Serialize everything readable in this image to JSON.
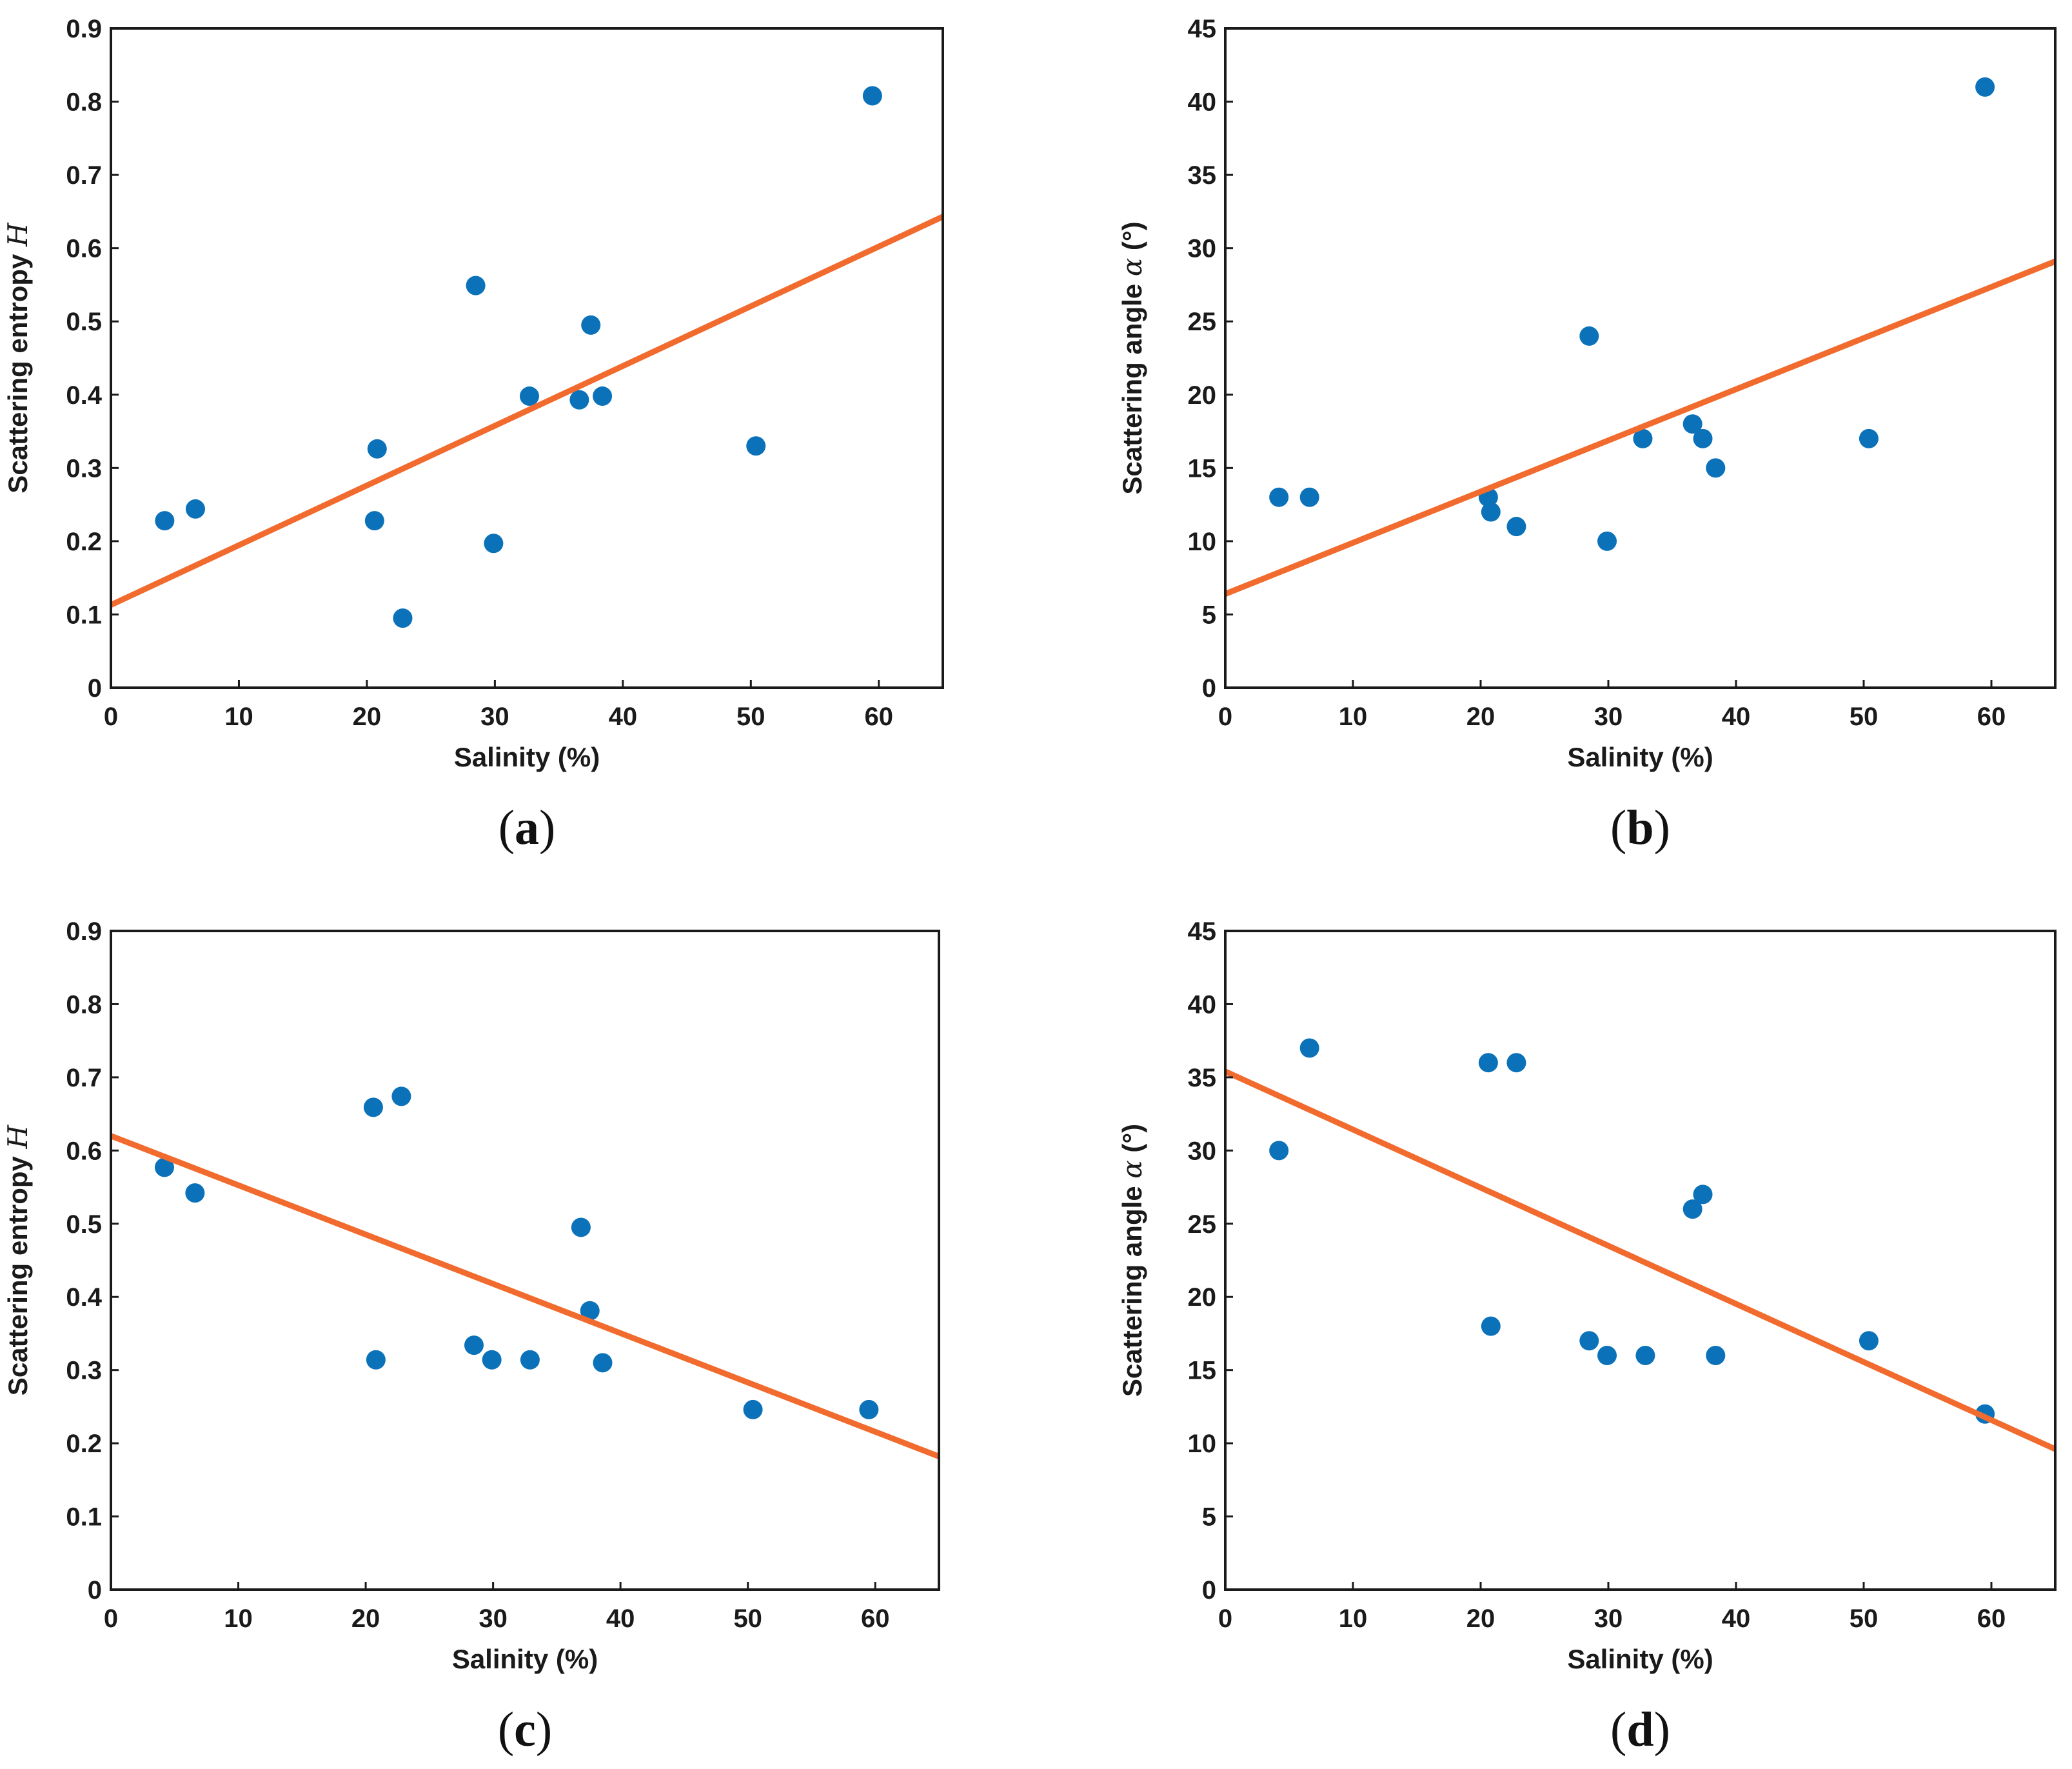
{
  "colors": {
    "point": "#0b72b9",
    "fit": "#f26b2e",
    "axis": "#1a1a1a"
  },
  "chart_data": [
    {
      "panel": "a",
      "caption": "(a)",
      "type": "scatter",
      "xlabel": "Salinity (%)",
      "ylabel": "Scattering entropy ",
      "ylabel_symbol": "H",
      "xlim": [
        0,
        65
      ],
      "ylim": [
        0,
        0.9
      ],
      "xticks": [
        "0",
        "10",
        "20",
        "30",
        "40",
        "50",
        "60"
      ],
      "yticks": [
        "0",
        "0.1",
        "0.2",
        "0.3",
        "0.4",
        "0.5",
        "0.6",
        "0.7",
        "0.8",
        "0.9"
      ],
      "points": [
        [
          4.2,
          0.228
        ],
        [
          6.6,
          0.244
        ],
        [
          20.6,
          0.228
        ],
        [
          20.8,
          0.326
        ],
        [
          22.8,
          0.095
        ],
        [
          28.5,
          0.549
        ],
        [
          29.9,
          0.197
        ],
        [
          32.7,
          0.398
        ],
        [
          36.6,
          0.393
        ],
        [
          37.5,
          0.495
        ],
        [
          38.4,
          0.398
        ],
        [
          50.4,
          0.33
        ],
        [
          59.5,
          0.808
        ]
      ],
      "fit_line": [
        [
          0,
          0.113
        ],
        [
          65,
          0.643
        ]
      ]
    },
    {
      "panel": "b",
      "caption": "(b)",
      "type": "scatter",
      "xlabel": "Salinity (%)",
      "ylabel": "Scattering angle ",
      "ylabel_symbol": "α",
      "ylabel_unit": " (°)",
      "xlim": [
        0,
        65
      ],
      "ylim": [
        0,
        45
      ],
      "xticks": [
        "0",
        "10",
        "20",
        "30",
        "40",
        "50",
        "60"
      ],
      "yticks": [
        "0",
        "5",
        "10",
        "15",
        "20",
        "25",
        "30",
        "35",
        "40",
        "45"
      ],
      "points": [
        [
          4.2,
          13
        ],
        [
          6.6,
          13
        ],
        [
          20.6,
          13
        ],
        [
          20.8,
          12
        ],
        [
          22.8,
          11
        ],
        [
          28.5,
          24
        ],
        [
          29.9,
          10
        ],
        [
          32.7,
          17
        ],
        [
          36.6,
          18
        ],
        [
          37.4,
          17
        ],
        [
          38.4,
          15
        ],
        [
          50.4,
          17
        ],
        [
          59.5,
          41
        ]
      ],
      "fit_line": [
        [
          0,
          6.4
        ],
        [
          65,
          29.1
        ]
      ]
    },
    {
      "panel": "c",
      "caption": "(c)",
      "type": "scatter",
      "xlabel": "Salinity (%)",
      "ylabel": "Scattering entropy ",
      "ylabel_symbol": "H",
      "xlim": [
        0,
        65
      ],
      "ylim": [
        0,
        0.9
      ],
      "xticks": [
        "0",
        "10",
        "20",
        "30",
        "40",
        "50",
        "60"
      ],
      "yticks": [
        "0",
        "0.1",
        "0.2",
        "0.3",
        "0.4",
        "0.5",
        "0.6",
        "0.7",
        "0.8",
        "0.9"
      ],
      "points": [
        [
          4.2,
          0.577
        ],
        [
          6.6,
          0.542
        ],
        [
          20.6,
          0.659
        ],
        [
          20.8,
          0.314
        ],
        [
          22.8,
          0.674
        ],
        [
          28.5,
          0.334
        ],
        [
          29.9,
          0.314
        ],
        [
          32.9,
          0.314
        ],
        [
          36.9,
          0.495
        ],
        [
          37.6,
          0.381
        ],
        [
          38.6,
          0.31
        ],
        [
          50.4,
          0.246
        ],
        [
          59.5,
          0.246
        ]
      ],
      "fit_line": [
        [
          0,
          0.62
        ],
        [
          65,
          0.182
        ]
      ]
    },
    {
      "panel": "d",
      "caption": "(d)",
      "type": "scatter",
      "xlabel": "Salinity (%)",
      "ylabel": "Scattering angle ",
      "ylabel_symbol": "α",
      "ylabel_unit": " (°)",
      "xlim": [
        0,
        65
      ],
      "ylim": [
        0,
        45
      ],
      "xticks": [
        "0",
        "10",
        "20",
        "30",
        "40",
        "50",
        "60"
      ],
      "yticks": [
        "0",
        "5",
        "10",
        "15",
        "20",
        "25",
        "30",
        "35",
        "40",
        "45"
      ],
      "points": [
        [
          4.2,
          30
        ],
        [
          6.6,
          37
        ],
        [
          20.6,
          36
        ],
        [
          20.8,
          18
        ],
        [
          22.8,
          36
        ],
        [
          28.5,
          17
        ],
        [
          29.9,
          16
        ],
        [
          32.9,
          16
        ],
        [
          36.6,
          26
        ],
        [
          37.4,
          27
        ],
        [
          38.4,
          16
        ],
        [
          50.4,
          17
        ],
        [
          59.5,
          12
        ]
      ],
      "fit_line": [
        [
          0,
          35.4
        ],
        [
          65,
          9.6
        ]
      ]
    }
  ]
}
